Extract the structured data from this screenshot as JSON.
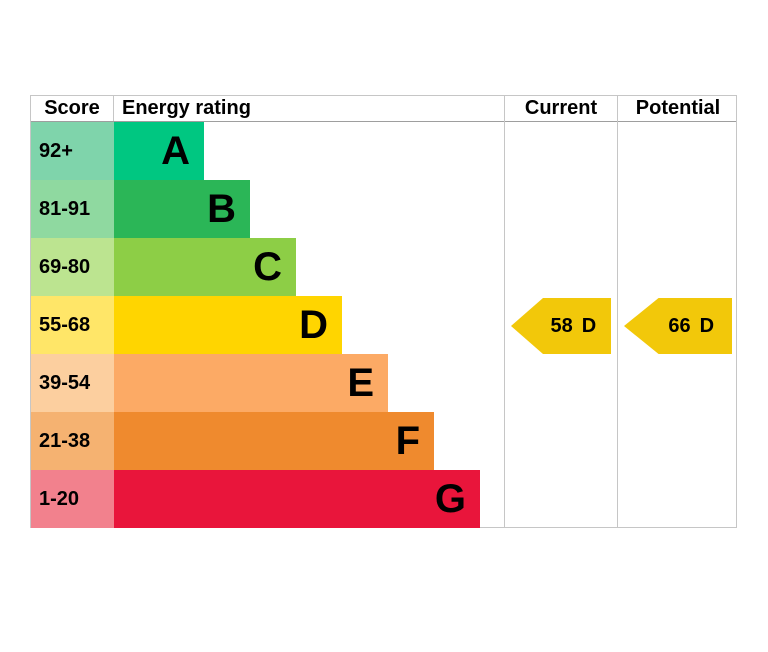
{
  "header": {
    "score": "Score",
    "rating": "Energy rating",
    "current": "Current",
    "potential": "Potential"
  },
  "bands": [
    {
      "letter": "A",
      "score": "92+",
      "bar_color": "#00c781",
      "score_bg": "#7fd4ab"
    },
    {
      "letter": "B",
      "score": "81-91",
      "bar_color": "#2bb657",
      "score_bg": "#8fd9a0"
    },
    {
      "letter": "C",
      "score": "69-80",
      "bar_color": "#8dce46",
      "score_bg": "#bce490"
    },
    {
      "letter": "D",
      "score": "55-68",
      "bar_color": "#ffd500",
      "score_bg": "#ffe668"
    },
    {
      "letter": "E",
      "score": "39-54",
      "bar_color": "#fcaa65",
      "score_bg": "#fccf9f"
    },
    {
      "letter": "F",
      "score": "21-38",
      "bar_color": "#ef8a2e",
      "score_bg": "#f5b271"
    },
    {
      "letter": "G",
      "score": "1-20",
      "bar_color": "#e9153b",
      "score_bg": "#f2818d"
    }
  ],
  "current": {
    "value": "58",
    "band": "D",
    "arrow_color": "#f2c80a"
  },
  "potential": {
    "value": "66",
    "band": "D",
    "arrow_color": "#f2c80a"
  },
  "chart_data": {
    "type": "bar",
    "title": "Energy rating",
    "categories": [
      "A",
      "B",
      "C",
      "D",
      "E",
      "F",
      "G"
    ],
    "score_ranges": [
      "92+",
      "81-91",
      "69-80",
      "55-68",
      "39-54",
      "21-38",
      "1-20"
    ],
    "band_colors": [
      "#00c781",
      "#2bb657",
      "#8dce46",
      "#ffd500",
      "#fcaa65",
      "#ef8a2e",
      "#e9153b"
    ],
    "bar_relative_widths": [
      90,
      136,
      182,
      228,
      274,
      320,
      366
    ],
    "columns": [
      "Score",
      "Energy rating",
      "Current",
      "Potential"
    ],
    "current": {
      "score": 58,
      "band": "D"
    },
    "potential": {
      "score": 66,
      "band": "D"
    },
    "legend_position": "none",
    "grid": false
  }
}
